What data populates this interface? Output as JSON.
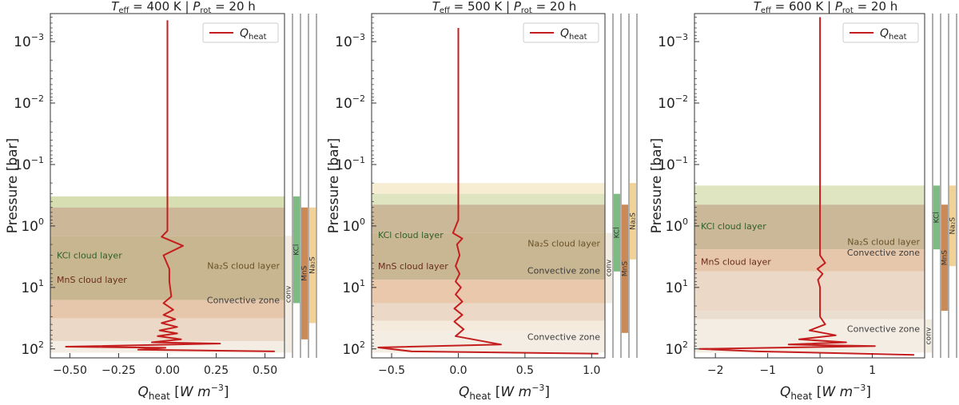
{
  "figure": {
    "type": "line"
  },
  "chart_data": [
    {
      "type": "line",
      "title_teff": "400 K",
      "title_prot": "20 h",
      "xlabel": "Q_heat [W m^-3]",
      "ylabel": "Pressure [bar]",
      "y_scale": "log",
      "y_inverted": true,
      "ylim": [
        0.00035,
        140
      ],
      "xlim": [
        -0.6,
        0.6
      ],
      "xticks": [
        -0.5,
        -0.25,
        0.0,
        0.25,
        0.5
      ],
      "xtick_labels": [
        "−0.50",
        "−0.25",
        "0.00",
        "0.25",
        "0.50"
      ],
      "legend": {
        "label": "Q_heat",
        "position": "top-right"
      },
      "series": [
        {
          "name": "Q_heat",
          "color": "#c41e1e",
          "x": [
            0,
            0,
            0,
            0,
            -0.03,
            0.08,
            -0.02,
            0.01,
            0.01,
            0.02,
            -0.02,
            0.03,
            -0.02,
            0.04,
            -0.03,
            0.05,
            -0.04,
            0.05,
            -0.05,
            0.07,
            -0.08,
            0.27,
            -0.52,
            -0.01,
            -0.15,
            0.55
          ],
          "y": [
            0.00045,
            0.01,
            0.1,
            1.2,
            1.5,
            2.1,
            3.0,
            5.0,
            8.0,
            14.0,
            18.0,
            23.0,
            28.0,
            33.0,
            38.0,
            44.0,
            50.0,
            56.0,
            62.0,
            70.0,
            78.0,
            82.0,
            92.0,
            96.0,
            103.0,
            110.0
          ]
        }
      ],
      "bands": [
        {
          "label": "",
          "p_top": 0.33,
          "p_bottom": 0.5,
          "color": "#d4dcae"
        },
        {
          "label": "",
          "p_top": 0.5,
          "p_bottom": 1.45,
          "color": "#c9b393"
        },
        {
          "label": "",
          "p_top": 1.45,
          "p_bottom": 16.0,
          "color": "#c5b28a"
        },
        {
          "label": "",
          "p_top": 16.0,
          "p_bottom": 32.0,
          "color": "#e6c4a6"
        },
        {
          "label": "",
          "p_top": 32.0,
          "p_bottom": 75.0,
          "color": "#ead6c4"
        },
        {
          "label": "",
          "p_top": 75.0,
          "p_bottom": 115.0,
          "color": "#f2ece2"
        }
      ],
      "annotations": [
        {
          "text": "KCl cloud layer",
          "color": "#2f5f2a",
          "p": 3.0,
          "align": "left"
        },
        {
          "text": "MnS cloud layer",
          "color": "#6a2d1c",
          "p": 7.5,
          "align": "left"
        },
        {
          "text": "Na₂S cloud layer",
          "color": "#6a5228",
          "p": 4.4,
          "align": "right"
        },
        {
          "text": "Convective zone",
          "color": "#3d3d3d",
          "p": 16.0,
          "align": "right"
        }
      ],
      "strips": [
        {
          "label": "conv",
          "color": "#f2ece2",
          "p_top": 1.45,
          "p_bottom": 115.0
        },
        {
          "label": "KCl",
          "color": "#7dbb83",
          "p_top": 0.33,
          "p_bottom": 18.0
        },
        {
          "label": "MnS",
          "color": "#c98a58",
          "p_top": 0.5,
          "p_bottom": 70.0
        },
        {
          "label": "Na2S",
          "color": "#f0d197",
          "p_top": 0.5,
          "p_bottom": 38.0
        }
      ]
    },
    {
      "type": "line",
      "title_teff": "500 K",
      "title_prot": "20 h",
      "xlabel": "Q_heat [W m^-3]",
      "ylabel": "Pressure [bar]",
      "y_scale": "log",
      "y_inverted": true,
      "ylim": [
        0.00035,
        140
      ],
      "xlim": [
        -0.65,
        1.1
      ],
      "xticks": [
        -0.5,
        0.0,
        0.5,
        1.0
      ],
      "xtick_labels": [
        "−0.5",
        "0.0",
        "0.5",
        "1.0"
      ],
      "legend": {
        "label": "Q_heat",
        "position": "top-right"
      },
      "series": [
        {
          "name": "Q_heat",
          "color": "#c41e1e",
          "x": [
            0,
            0,
            0,
            0,
            -0.04,
            0.03,
            -0.01,
            0.01,
            -0.02,
            0.01,
            -0.02,
            0.02,
            -0.02,
            0.03,
            -0.03,
            0.03,
            -0.03,
            0.04,
            -0.02,
            0.32,
            -0.6,
            -0.35,
            1.05
          ],
          "y": [
            0.0006,
            0.01,
            0.1,
            0.8,
            1.3,
            1.6,
            2.0,
            3.0,
            4.5,
            6.0,
            8.0,
            10.0,
            13.0,
            17.0,
            22.0,
            28.0,
            36.0,
            48.0,
            62.0,
            85.0,
            95.0,
            110.0,
            120.0
          ]
        }
      ],
      "bands": [
        {
          "label": "",
          "p_top": 0.2,
          "p_bottom": 0.3,
          "color": "#f6ecd0"
        },
        {
          "label": "",
          "p_top": 0.3,
          "p_bottom": 0.45,
          "color": "#dee4be"
        },
        {
          "label": "",
          "p_top": 0.45,
          "p_bottom": 1.3,
          "color": "#c8b492"
        },
        {
          "label": "",
          "p_top": 1.3,
          "p_bottom": 7.5,
          "color": "#c6b28c"
        },
        {
          "label": "",
          "p_top": 7.5,
          "p_bottom": 18.0,
          "color": "#e8c5a7"
        },
        {
          "label": "",
          "p_top": 18.0,
          "p_bottom": 35.0,
          "color": "#ead6c4"
        },
        {
          "label": "",
          "p_top": 35.0,
          "p_bottom": 52.0,
          "color": "#f4eadb"
        },
        {
          "label": "",
          "p_top": 52.0,
          "p_bottom": 115.0,
          "color": "#f2ece2"
        }
      ],
      "annotations": [
        {
          "text": "KCl cloud layer",
          "color": "#2f5f2a",
          "p": 1.4,
          "align": "left"
        },
        {
          "text": "MnS cloud layer",
          "color": "#6a2d1c",
          "p": 4.5,
          "align": "left"
        },
        {
          "text": "Na₂S cloud layer",
          "color": "#6a5228",
          "p": 1.9,
          "align": "right"
        },
        {
          "text": "Convective zone",
          "color": "#3d3d3d",
          "p": 5.3,
          "align": "right"
        },
        {
          "text": "Convective zone",
          "color": "#3d3d3d",
          "p": 63.0,
          "align": "right"
        }
      ],
      "strips": [
        {
          "label": "conv",
          "color": "#f2ece2",
          "p_top": 1.3,
          "p_bottom": 18.0
        },
        {
          "label": "KCl",
          "color": "#7dbb83",
          "p_top": 0.3,
          "p_bottom": 5.5
        },
        {
          "label": "MnS",
          "color": "#c98a58",
          "p_top": 0.45,
          "p_bottom": 55.0
        },
        {
          "label": "Na2S",
          "color": "#f0d197",
          "p_top": 0.2,
          "p_bottom": 3.5
        }
      ]
    },
    {
      "type": "line",
      "title_teff": "600 K",
      "title_prot": "20 h",
      "xlabel": "Q_heat [W m^-3]",
      "ylabel": "Pressure [bar]",
      "y_scale": "log",
      "y_inverted": true,
      "ylim": [
        0.00035,
        140
      ],
      "xlim": [
        -2.4,
        2.0
      ],
      "xticks": [
        -2,
        -1,
        0,
        1
      ],
      "xtick_labels": [
        "−2",
        "−1",
        "0",
        "1"
      ],
      "legend": {
        "label": "Q_heat",
        "position": "top-right"
      },
      "series": [
        {
          "name": "Q_heat",
          "color": "#c41e1e",
          "x": [
            0,
            0,
            0,
            0,
            0,
            0.1,
            -0.05,
            0.05,
            -0.04,
            0.0,
            0.0,
            0.1,
            -0.2,
            0.3,
            -0.4,
            0.5,
            -0.6,
            1.05,
            -2.3,
            -1.2,
            1.8
          ],
          "y": [
            0.0004,
            0.01,
            0.1,
            1.0,
            3.0,
            4.0,
            5.0,
            6.0,
            7.5,
            10.0,
            30.0,
            40.0,
            50.0,
            60.0,
            70.0,
            78.0,
            85.0,
            90.0,
            100.0,
            110.0,
            125.0
          ]
        }
      ],
      "bands": [
        {
          "label": "",
          "p_top": 0.22,
          "p_bottom": 0.45,
          "color": "#dee4be"
        },
        {
          "label": "",
          "p_top": 0.45,
          "p_bottom": 2.4,
          "color": "#c8b492"
        },
        {
          "label": "",
          "p_top": 2.4,
          "p_bottom": 5.5,
          "color": "#e6c4a6"
        },
        {
          "label": "",
          "p_top": 5.5,
          "p_bottom": 24.0,
          "color": "#ead6c4"
        },
        {
          "label": "",
          "p_top": 24.0,
          "p_bottom": 33.0,
          "color": "#e9dccd"
        },
        {
          "label": "",
          "p_top": 33.0,
          "p_bottom": 115.0,
          "color": "#f2ece2"
        }
      ],
      "annotations": [
        {
          "text": "KCl cloud layer",
          "color": "#2f5f2a",
          "p": 1.0,
          "align": "left"
        },
        {
          "text": "MnS cloud layer",
          "color": "#6a2d1c",
          "p": 3.8,
          "align": "left"
        },
        {
          "text": "Na₂S cloud layer",
          "color": "#6a5228",
          "p": 1.8,
          "align": "right"
        },
        {
          "text": "Convective zone",
          "color": "#3d3d3d",
          "p": 2.7,
          "align": "right"
        },
        {
          "text": "Convective zone",
          "color": "#3d3d3d",
          "p": 47.0,
          "align": "right"
        }
      ],
      "strips": [
        {
          "label": "conv",
          "color": "#f2ece2",
          "p_top": 33.0,
          "p_bottom": 115.0
        },
        {
          "label": "KCl",
          "color": "#7dbb83",
          "p_top": 0.22,
          "p_bottom": 2.4
        },
        {
          "label": "MnS",
          "color": "#c98a58",
          "p_top": 0.45,
          "p_bottom": 24.0
        },
        {
          "label": "Na2S",
          "color": "#f0d197",
          "p_top": 0.22,
          "p_bottom": 4.5
        }
      ]
    }
  ]
}
